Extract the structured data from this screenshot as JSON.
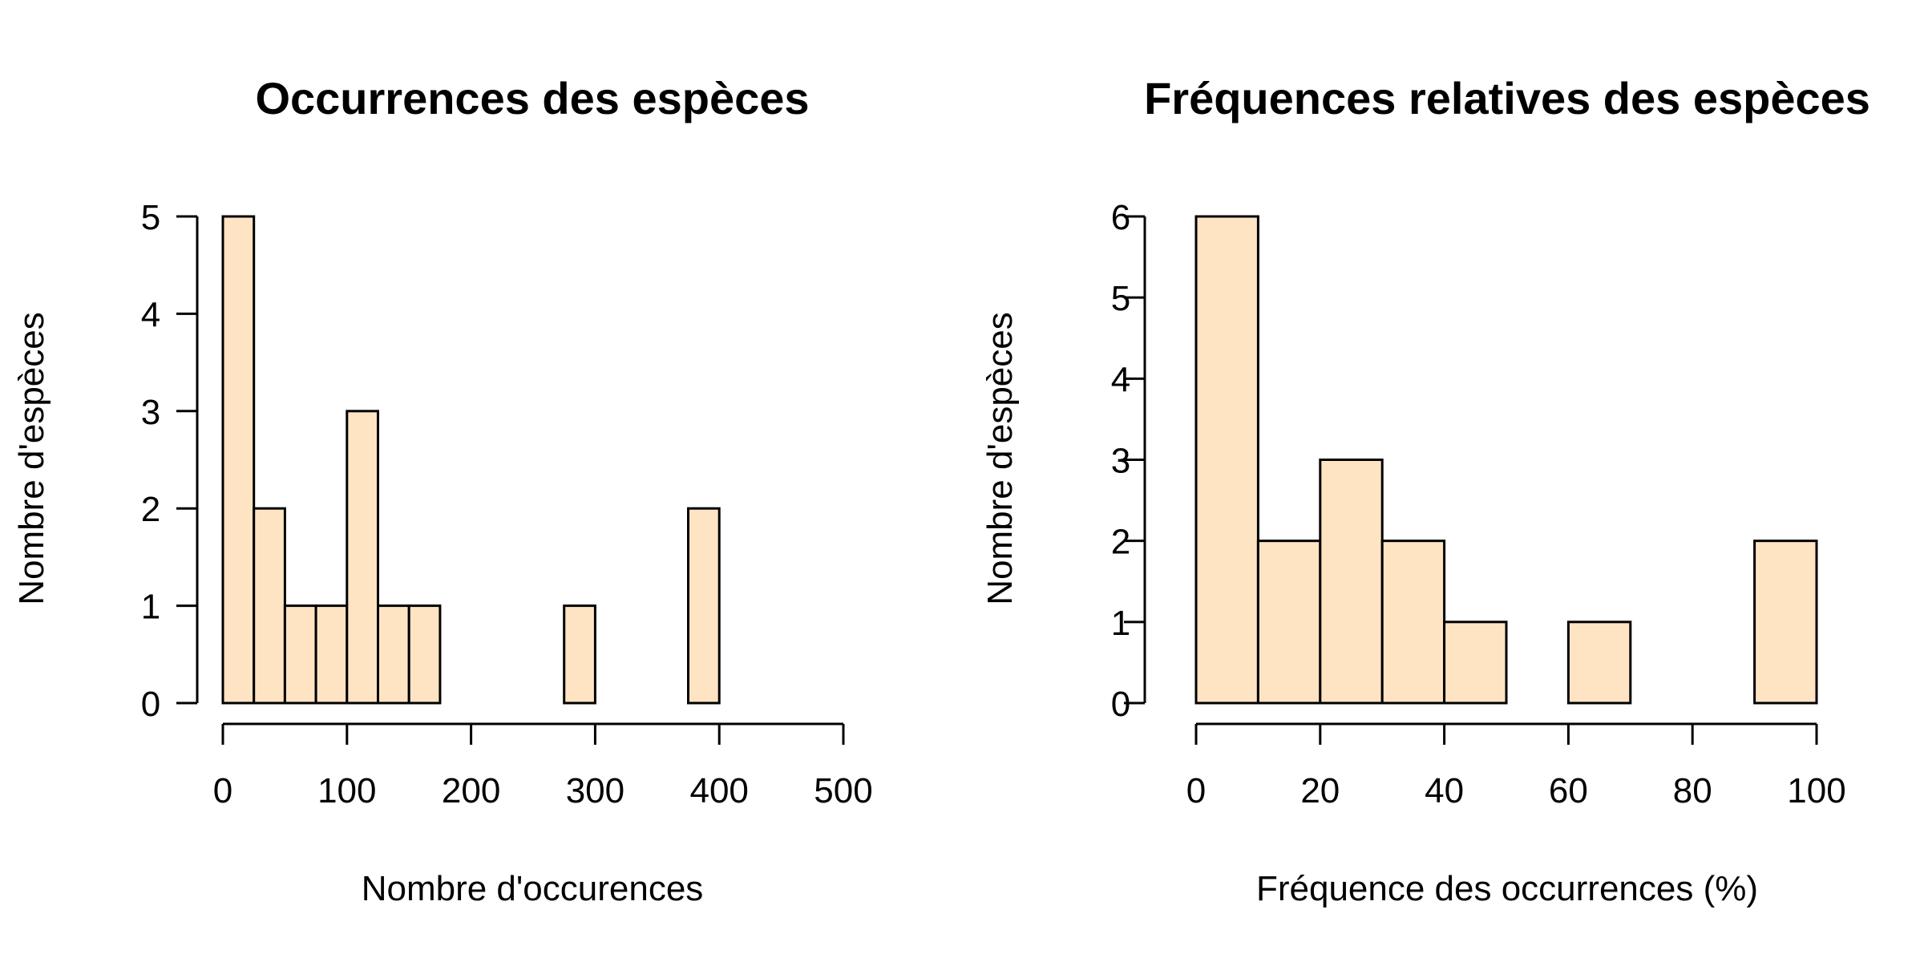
{
  "chart_data": [
    {
      "type": "bar",
      "subtype": "histogram",
      "title": "Occurrences des espèces",
      "xlabel": "Nombre d'occurences",
      "ylabel": "Nombre d'espèces",
      "xlim": [
        0,
        500
      ],
      "ylim": [
        0,
        5
      ],
      "x_ticks": [
        0,
        100,
        200,
        300,
        400,
        500
      ],
      "y_ticks": [
        0,
        1,
        2,
        3,
        4,
        5
      ],
      "bin_width": 25,
      "bins": [
        {
          "start": 0,
          "end": 25,
          "count": 5
        },
        {
          "start": 25,
          "end": 50,
          "count": 2
        },
        {
          "start": 50,
          "end": 75,
          "count": 1
        },
        {
          "start": 75,
          "end": 100,
          "count": 1
        },
        {
          "start": 100,
          "end": 125,
          "count": 3
        },
        {
          "start": 125,
          "end": 150,
          "count": 1
        },
        {
          "start": 150,
          "end": 175,
          "count": 1
        },
        {
          "start": 175,
          "end": 200,
          "count": 0
        },
        {
          "start": 200,
          "end": 225,
          "count": 0
        },
        {
          "start": 225,
          "end": 250,
          "count": 0
        },
        {
          "start": 250,
          "end": 275,
          "count": 0
        },
        {
          "start": 275,
          "end": 300,
          "count": 1
        },
        {
          "start": 300,
          "end": 325,
          "count": 0
        },
        {
          "start": 325,
          "end": 350,
          "count": 0
        },
        {
          "start": 350,
          "end": 375,
          "count": 0
        },
        {
          "start": 375,
          "end": 400,
          "count": 2
        },
        {
          "start": 400,
          "end": 425,
          "count": 0
        },
        {
          "start": 425,
          "end": 450,
          "count": 0
        },
        {
          "start": 450,
          "end": 475,
          "count": 0
        },
        {
          "start": 475,
          "end": 500,
          "count": 0
        }
      ],
      "grid": false,
      "bar_color": "#FFE4C4",
      "edge_color": "#000000"
    },
    {
      "type": "bar",
      "subtype": "histogram",
      "title": "Fréquences relatives des espèces",
      "xlabel": "Fréquence des occurrences (%)",
      "ylabel": "Nombre d'espèces",
      "xlim": [
        0,
        100
      ],
      "ylim": [
        0,
        6
      ],
      "x_ticks": [
        0,
        20,
        40,
        60,
        80,
        100
      ],
      "y_ticks": [
        0,
        1,
        2,
        3,
        4,
        5,
        6
      ],
      "bin_width": 10,
      "bins": [
        {
          "start": 0,
          "end": 10,
          "count": 6
        },
        {
          "start": 10,
          "end": 20,
          "count": 2
        },
        {
          "start": 20,
          "end": 30,
          "count": 3
        },
        {
          "start": 30,
          "end": 40,
          "count": 2
        },
        {
          "start": 40,
          "end": 50,
          "count": 1
        },
        {
          "start": 50,
          "end": 60,
          "count": 0
        },
        {
          "start": 60,
          "end": 70,
          "count": 1
        },
        {
          "start": 70,
          "end": 80,
          "count": 0
        },
        {
          "start": 80,
          "end": 90,
          "count": 0
        },
        {
          "start": 90,
          "end": 100,
          "count": 2
        }
      ],
      "grid": false,
      "bar_color": "#FFE4C4",
      "edge_color": "#000000"
    }
  ]
}
